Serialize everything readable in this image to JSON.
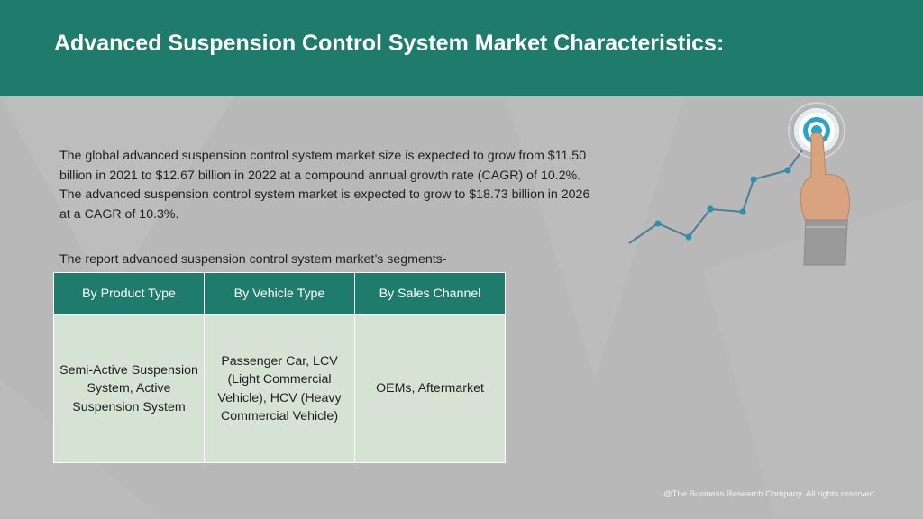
{
  "header": {
    "title": "Advanced Suspension Control System Market Characteristics:"
  },
  "body": {
    "paragraph": "The global advanced suspension control system market size is expected to grow from $11.50 billion in 2021 to $12.67 billion in 2022 at a compound annual growth rate (CAGR) of 10.2%. The advanced suspension control system market is expected to grow to $18.73 billion in 2026 at a CAGR of 10.3%.",
    "segments_intro": "The report advanced suspension control system market’s segments-"
  },
  "table": {
    "headers": [
      "By Product Type",
      "By Vehicle Type",
      "By Sales Channel"
    ],
    "cells": [
      "Semi-Active Suspension System, Active Suspension System",
      "Passenger Car, LCV (Light Commercial Vehicle), HCV (Heavy Commercial Vehicle)",
      "OEMs, Aftermarket"
    ]
  },
  "footer": {
    "copyright": "@The Business Research Company. All rights reserved."
  },
  "graphic": {
    "icon": "hand-touching-target-icon",
    "line_color": "#4a7f98",
    "target_color": "#2aa3c4"
  },
  "colors": {
    "header_bg": "#1f7b6c",
    "table_cell_bg": "#d6e2d3",
    "page_bg": "#b8b8b8"
  }
}
